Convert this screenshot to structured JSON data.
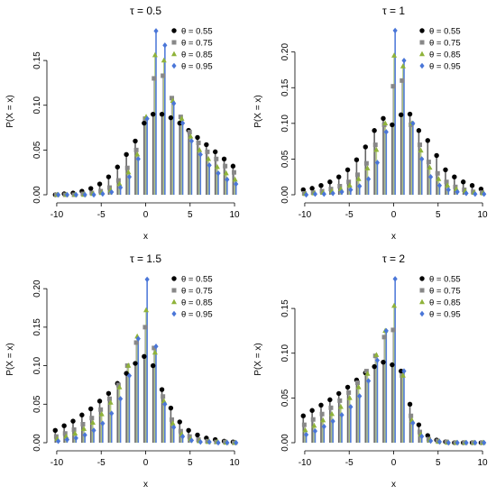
{
  "chart_data": [
    {
      "type": "scatter",
      "title": "τ = 0.5",
      "xlabel": "x",
      "ylabel": "P(X = x)",
      "xlim": [
        -10,
        10
      ],
      "ylim": [
        0,
        0.185
      ],
      "x_ticks": [
        -10,
        -5,
        0,
        5,
        10
      ],
      "y_ticks": [
        0.0,
        0.05,
        0.1,
        0.15
      ],
      "legend_position": "top-right",
      "x": [
        -10,
        -9,
        -8,
        -7,
        -6,
        -5,
        -4,
        -3,
        -2,
        -1,
        0,
        1,
        2,
        3,
        4,
        5,
        6,
        7,
        8,
        9,
        10
      ],
      "series": [
        {
          "name": "θ = 0.55",
          "color": "#000000",
          "marker": "circle",
          "values": [
            0.0,
            0.001,
            0.002,
            0.004,
            0.007,
            0.012,
            0.02,
            0.031,
            0.045,
            0.06,
            0.08,
            0.09,
            0.09,
            0.086,
            0.08,
            0.072,
            0.064,
            0.056,
            0.048,
            0.04,
            0.032
          ]
        },
        {
          "name": "θ = 0.75",
          "color": "#888888",
          "marker": "square",
          "values": [
            0.0,
            0.0,
            0.0,
            0.001,
            0.002,
            0.004,
            0.008,
            0.016,
            0.03,
            0.05,
            0.085,
            0.13,
            0.133,
            0.108,
            0.087,
            0.07,
            0.058,
            0.048,
            0.04,
            0.032,
            0.025
          ]
        },
        {
          "name": "θ = 0.85",
          "color": "#8fb33a",
          "marker": "triangle",
          "values": [
            0.0,
            0.0,
            0.0,
            0.0,
            0.001,
            0.002,
            0.005,
            0.012,
            0.025,
            0.045,
            0.087,
            0.156,
            0.15,
            0.105,
            0.085,
            0.065,
            0.05,
            0.04,
            0.031,
            0.024,
            0.017
          ]
        },
        {
          "name": "θ = 0.95",
          "color": "#4a76d8",
          "marker": "diamond",
          "values": [
            0.0,
            0.0,
            0.0,
            0.0,
            0.0,
            0.001,
            0.003,
            0.008,
            0.02,
            0.04,
            0.085,
            0.183,
            0.167,
            0.102,
            0.08,
            0.06,
            0.045,
            0.033,
            0.024,
            0.017,
            0.012
          ]
        }
      ]
    },
    {
      "type": "scatter",
      "title": "τ = 1",
      "xlabel": "x",
      "ylabel": "P(X = x)",
      "xlim": [
        -10,
        10
      ],
      "ylim": [
        0,
        0.232
      ],
      "x_ticks": [
        -10,
        -5,
        0,
        5,
        10
      ],
      "y_ticks": [
        0.0,
        0.05,
        0.1,
        0.15,
        0.2
      ],
      "legend_position": "top-right",
      "x": [
        -10,
        -9,
        -8,
        -7,
        -6,
        -5,
        -4,
        -3,
        -2,
        -1,
        0,
        1,
        2,
        3,
        4,
        5,
        6,
        7,
        8,
        9,
        10
      ],
      "series": [
        {
          "name": "θ = 0.55",
          "color": "#000000",
          "marker": "circle",
          "values": [
            0.007,
            0.009,
            0.013,
            0.018,
            0.025,
            0.035,
            0.049,
            0.067,
            0.09,
            0.107,
            0.098,
            0.112,
            0.113,
            0.09,
            0.076,
            0.055,
            0.035,
            0.025,
            0.018,
            0.013,
            0.008
          ]
        },
        {
          "name": "θ = 0.75",
          "color": "#888888",
          "marker": "square",
          "values": [
            0.002,
            0.003,
            0.005,
            0.008,
            0.012,
            0.018,
            0.028,
            0.044,
            0.07,
            0.098,
            0.152,
            0.16,
            0.098,
            0.07,
            0.046,
            0.03,
            0.018,
            0.011,
            0.007,
            0.004,
            0.003
          ]
        },
        {
          "name": "θ = 0.85",
          "color": "#8fb33a",
          "marker": "triangle",
          "values": [
            0.001,
            0.002,
            0.003,
            0.005,
            0.008,
            0.013,
            0.022,
            0.037,
            0.063,
            0.1,
            0.195,
            0.18,
            0.1,
            0.062,
            0.038,
            0.022,
            0.013,
            0.008,
            0.005,
            0.003,
            0.002
          ]
        },
        {
          "name": "θ = 0.95",
          "color": "#4a76d8",
          "marker": "diamond",
          "values": [
            0.0,
            0.001,
            0.001,
            0.002,
            0.004,
            0.007,
            0.012,
            0.022,
            0.045,
            0.088,
            0.23,
            0.188,
            0.1,
            0.05,
            0.025,
            0.013,
            0.007,
            0.004,
            0.002,
            0.001,
            0.001
          ]
        }
      ]
    },
    {
      "type": "scatter",
      "title": "τ = 1.5",
      "xlabel": "x",
      "ylabel": "P(X = x)",
      "xlim": [
        -10,
        10
      ],
      "ylim": [
        0,
        0.215
      ],
      "x_ticks": [
        -10,
        -5,
        0,
        5,
        10
      ],
      "y_ticks": [
        0.0,
        0.05,
        0.1,
        0.15,
        0.2
      ],
      "legend_position": "top-right",
      "x": [
        -10,
        -9,
        -8,
        -7,
        -6,
        -5,
        -4,
        -3,
        -2,
        -1,
        0,
        1,
        2,
        3,
        4,
        5,
        6,
        7,
        8,
        9,
        10
      ],
      "series": [
        {
          "name": "θ = 0.55",
          "color": "#000000",
          "marker": "circle",
          "values": [
            0.016,
            0.022,
            0.028,
            0.036,
            0.044,
            0.054,
            0.064,
            0.077,
            0.09,
            0.103,
            0.112,
            0.1,
            0.069,
            0.045,
            0.027,
            0.016,
            0.01,
            0.006,
            0.004,
            0.002,
            0.001
          ]
        },
        {
          "name": "θ = 0.75",
          "color": "#888888",
          "marker": "square",
          "values": [
            0.008,
            0.012,
            0.017,
            0.024,
            0.032,
            0.043,
            0.057,
            0.075,
            0.1,
            0.13,
            0.15,
            0.123,
            0.06,
            0.03,
            0.015,
            0.008,
            0.004,
            0.002,
            0.001,
            0.001,
            0.0
          ]
        },
        {
          "name": "θ = 0.85",
          "color": "#8fb33a",
          "marker": "triangle",
          "values": [
            0.005,
            0.008,
            0.012,
            0.018,
            0.026,
            0.037,
            0.052,
            0.072,
            0.1,
            0.138,
            0.172,
            0.117,
            0.054,
            0.025,
            0.011,
            0.005,
            0.002,
            0.001,
            0.001,
            0.0,
            0.0
          ]
        },
        {
          "name": "θ = 0.95",
          "color": "#4a76d8",
          "marker": "diamond",
          "values": [
            0.002,
            0.004,
            0.006,
            0.01,
            0.016,
            0.025,
            0.038,
            0.057,
            0.087,
            0.135,
            0.212,
            0.125,
            0.05,
            0.02,
            0.008,
            0.003,
            0.001,
            0.001,
            0.0,
            0.0,
            0.0
          ]
        }
      ]
    },
    {
      "type": "scatter",
      "title": "τ = 2",
      "xlabel": "x",
      "ylabel": "P(X = x)",
      "xlim": [
        -10,
        10
      ],
      "ylim": [
        0,
        0.185
      ],
      "x_ticks": [
        -10,
        -5,
        0,
        5,
        10
      ],
      "y_ticks": [
        0.0,
        0.05,
        0.1,
        0.15
      ],
      "legend_position": "top-right",
      "x": [
        -10,
        -9,
        -8,
        -7,
        -6,
        -5,
        -4,
        -3,
        -2,
        -1,
        0,
        1,
        2,
        3,
        4,
        5,
        6,
        7,
        8,
        9,
        10
      ],
      "series": [
        {
          "name": "θ = 0.55",
          "color": "#000000",
          "marker": "circle",
          "values": [
            0.03,
            0.036,
            0.042,
            0.048,
            0.055,
            0.062,
            0.07,
            0.078,
            0.085,
            0.09,
            0.087,
            0.08,
            0.043,
            0.02,
            0.008,
            0.003,
            0.001,
            0.0,
            0.0,
            0.0,
            0.0
          ]
        },
        {
          "name": "θ = 0.75",
          "color": "#888888",
          "marker": "square",
          "values": [
            0.02,
            0.026,
            0.032,
            0.039,
            0.047,
            0.056,
            0.067,
            0.08,
            0.097,
            0.118,
            0.126,
            0.075,
            0.03,
            0.012,
            0.004,
            0.002,
            0.001,
            0.0,
            0.0,
            0.0,
            0.0
          ]
        },
        {
          "name": "θ = 0.85",
          "color": "#8fb33a",
          "marker": "triangle",
          "values": [
            0.014,
            0.019,
            0.025,
            0.032,
            0.04,
            0.05,
            0.062,
            0.077,
            0.098,
            0.125,
            0.153,
            0.075,
            0.025,
            0.009,
            0.003,
            0.001,
            0.0,
            0.0,
            0.0,
            0.0,
            0.0
          ]
        },
        {
          "name": "θ = 0.95",
          "color": "#4a76d8",
          "marker": "diamond",
          "values": [
            0.009,
            0.013,
            0.018,
            0.024,
            0.031,
            0.04,
            0.052,
            0.069,
            0.092,
            0.125,
            0.183,
            0.08,
            0.022,
            0.007,
            0.002,
            0.001,
            0.0,
            0.0,
            0.0,
            0.0,
            0.0
          ]
        }
      ]
    }
  ]
}
